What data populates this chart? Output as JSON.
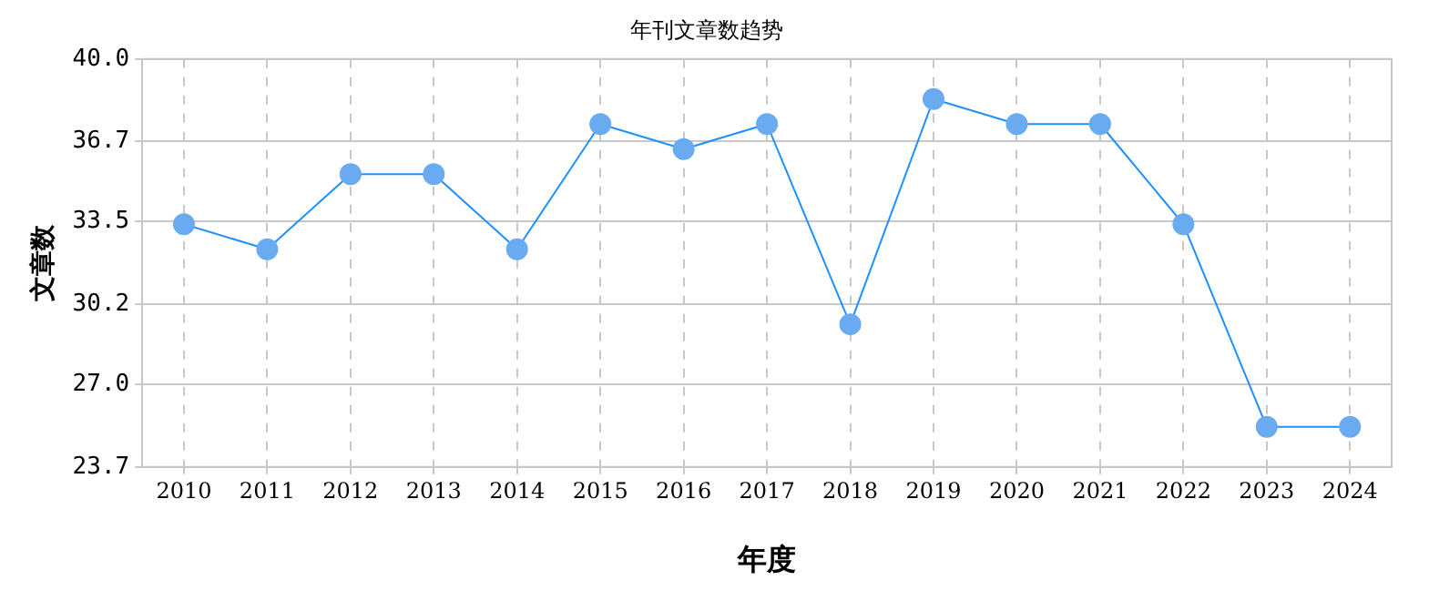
{
  "chart_data": {
    "type": "line",
    "title": "年刊文章数趋势",
    "xlabel": "年度",
    "ylabel": "文章数",
    "categories": [
      "2010",
      "2011",
      "2012",
      "2013",
      "2014",
      "2015",
      "2016",
      "2017",
      "2018",
      "2019",
      "2020",
      "2021",
      "2022",
      "2023",
      "2024"
    ],
    "series": [
      {
        "color": "#1e90ff",
        "values": [
          33.4,
          32.4,
          35.4,
          35.4,
          32.4,
          37.4,
          36.4,
          37.4,
          29.4,
          38.4,
          37.4,
          37.4,
          33.4,
          25.3,
          25.3
        ]
      }
    ],
    "ylim": [
      23.7,
      40.0
    ],
    "yticks": [
      {
        "value": 23.7,
        "label": "23.7"
      },
      {
        "value": 27.0,
        "label": "27.0"
      },
      {
        "value": 30.2,
        "label": "30.2"
      },
      {
        "value": 33.5,
        "label": "33.5"
      },
      {
        "value": 36.7,
        "label": "36.7"
      },
      {
        "value": 40.0,
        "label": "40.0"
      }
    ],
    "grid": true,
    "marker": "circle",
    "legend": false
  }
}
